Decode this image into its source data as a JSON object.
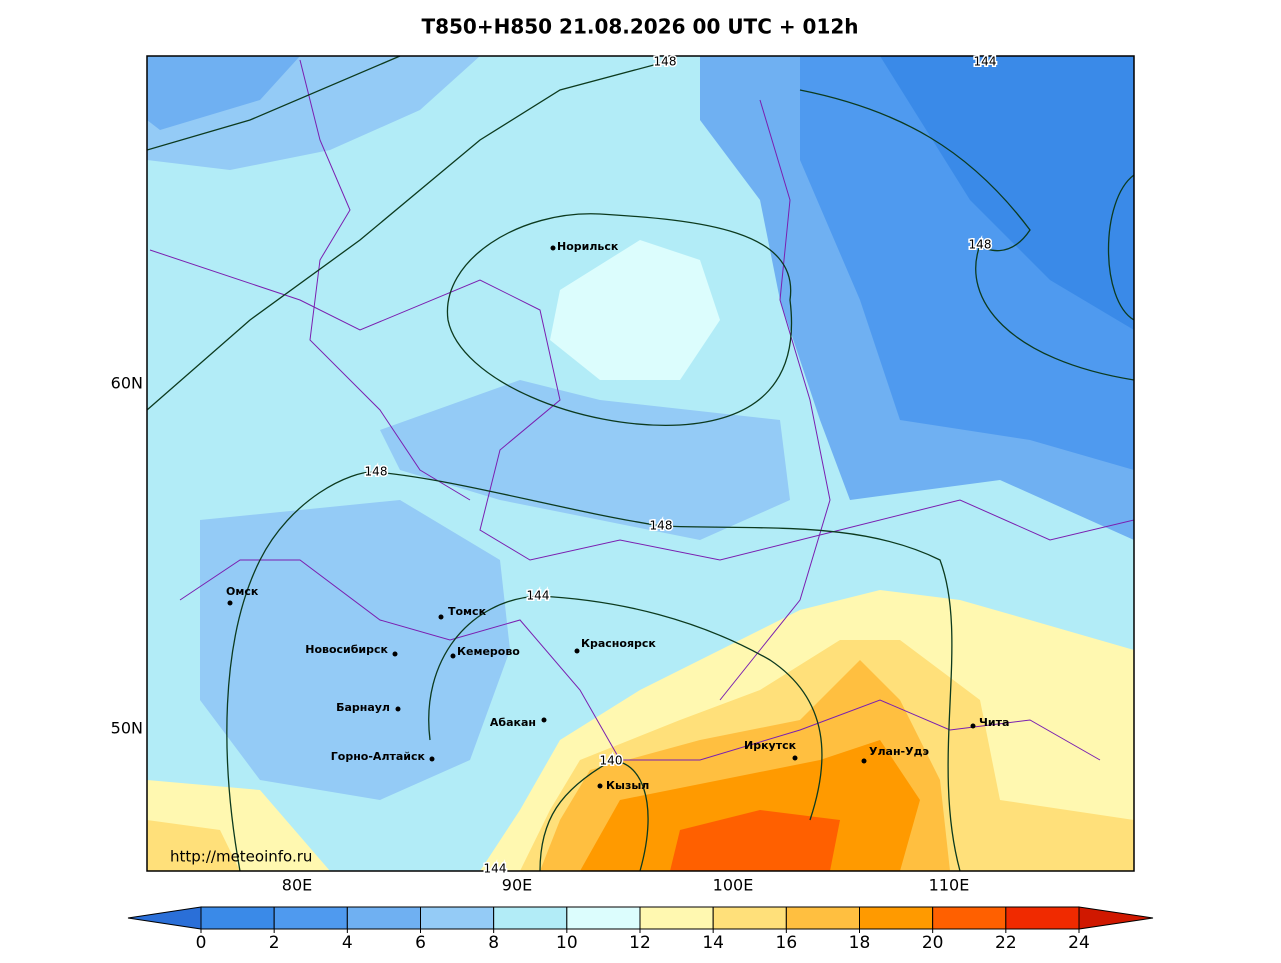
{
  "title": "T850+H850 21.08.2026 00 UTC + 012h",
  "lat_labels": [
    "60N",
    "50N"
  ],
  "lon_labels": [
    "80E",
    "90E",
    "100E",
    "110E"
  ],
  "cities": [
    "Норильск",
    "Омск",
    "Томск",
    "Новосибирск",
    "Кемерово",
    "Красноярск",
    "Барнаул",
    "Абакан",
    "Горно-Алтайск",
    "Кызыл",
    "Иркутск",
    "Улан-Удэ",
    "Чита"
  ],
  "contour_labels": [
    148,
    144,
    148,
    148,
    148,
    144,
    140,
    144
  ],
  "source": "http://meteoinfo.ru",
  "colorbar": {
    "ticks": [
      0,
      2,
      4,
      6,
      8,
      10,
      12,
      14,
      16,
      18,
      20,
      22,
      24
    ],
    "under_color": "#2a6fd8",
    "over_color": "#d01800",
    "colors": [
      "#3a8ae8",
      "#4f9aef",
      "#6fb0f2",
      "#94cbf6",
      "#b2ecf7",
      "#dcfdfd",
      "#fff8b0",
      "#ffe07a",
      "#ffbf40",
      "#ff9a00",
      "#ff6000",
      "#f02a00"
    ]
  }
}
